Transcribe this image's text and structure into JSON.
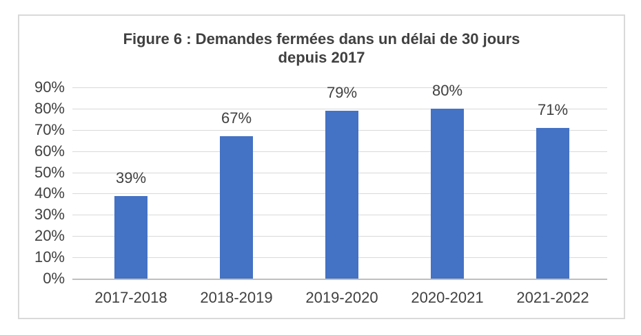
{
  "figure": {
    "title_line1": "Figure 6 : Demandes fermées dans un délai de 30 jours",
    "title_line2": "depuis 2017"
  },
  "chart_data": {
    "type": "bar",
    "title": "Figure 6 : Demandes fermées dans un délai de 30 jours depuis 2017",
    "categories": [
      "2017-2018",
      "2018-2019",
      "2019-2020",
      "2020-2021",
      "2021-2022"
    ],
    "values": [
      39,
      67,
      79,
      80,
      71
    ],
    "data_labels": [
      "39%",
      "67%",
      "79%",
      "80%",
      "71%"
    ],
    "xlabel": "",
    "ylabel": "",
    "ylim": [
      0,
      90
    ],
    "y_tick_step": 10,
    "y_tick_labels": [
      "0%",
      "10%",
      "20%",
      "30%",
      "40%",
      "50%",
      "60%",
      "70%",
      "80%",
      "90%"
    ],
    "grid": true,
    "legend": false,
    "colors": {
      "bar": "#4472C4",
      "text": "#404040",
      "gridline": "#D9D9D9",
      "axis_line": "#BFBFBF",
      "frame_border": "#D9D9D9",
      "background": "#FFFFFF"
    }
  }
}
